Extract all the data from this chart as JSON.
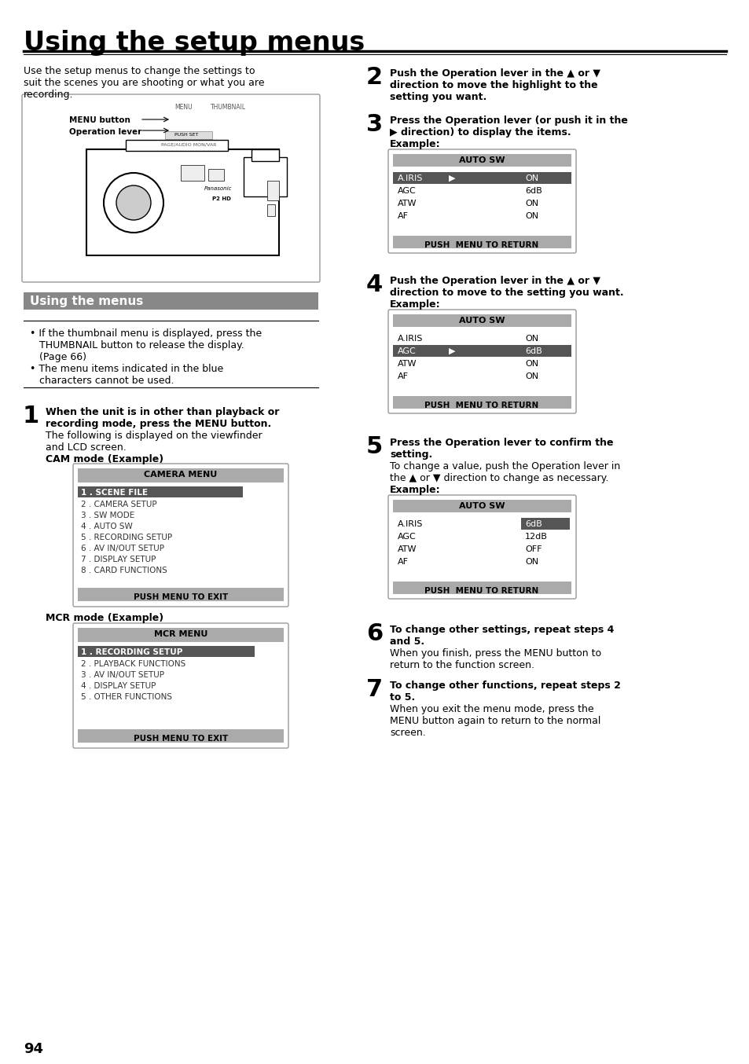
{
  "title": "Using the setup menus",
  "bg_color": "#ffffff",
  "page_number": "94",
  "section_header": "Using the menus",
  "cam_mode_label": "CAM mode (Example)",
  "cam_menu_title": "CAMERA MENU",
  "cam_menu_highlight": "1 . SCENE FILE",
  "cam_menu_items": [
    "2 . CAMERA SETUP",
    "3 . SW MODE",
    "4 . AUTO SW",
    "5 . RECORDING SETUP",
    "6 . AV IN/OUT SETUP",
    "7 . DISPLAY SETUP",
    "8 . CARD FUNCTIONS"
  ],
  "cam_menu_footer": "PUSH MENU TO EXIT",
  "mcr_mode_label": "MCR mode (Example)",
  "mcr_menu_title": "MCR MENU",
  "mcr_menu_highlight": "1 . RECORDING SETUP",
  "mcr_menu_items": [
    "2 . PLAYBACK FUNCTIONS",
    "3 . AV IN/OUT SETUP",
    "4 . DISPLAY SETUP",
    "5 . OTHER FUNCTIONS"
  ],
  "mcr_menu_footer": "PUSH MENU TO EXIT",
  "autosw_title": "AUTO SW",
  "autosw1_items": [
    [
      "A.IRIS",
      "▶",
      "ON"
    ],
    [
      "AGC",
      "",
      "6dB"
    ],
    [
      "ATW",
      "",
      "ON"
    ],
    [
      "AF",
      "",
      "ON"
    ]
  ],
  "autosw2_items": [
    [
      "A.IRIS",
      "",
      "ON"
    ],
    [
      "AGC",
      "▶",
      "6dB"
    ],
    [
      "ATW",
      "",
      "ON"
    ],
    [
      "AF",
      "",
      "ON"
    ]
  ],
  "autosw3_items": [
    [
      "A.IRIS",
      "",
      "6dB"
    ],
    [
      "AGC",
      "",
      "12dB"
    ],
    [
      "ATW",
      "",
      "OFF"
    ],
    [
      "AF",
      "",
      "ON"
    ]
  ],
  "up_arrow": "▲",
  "down_arrow": "▼",
  "right_arrow": "▶",
  "menu_footer_text": "PUSH  MENU TO RETURN"
}
